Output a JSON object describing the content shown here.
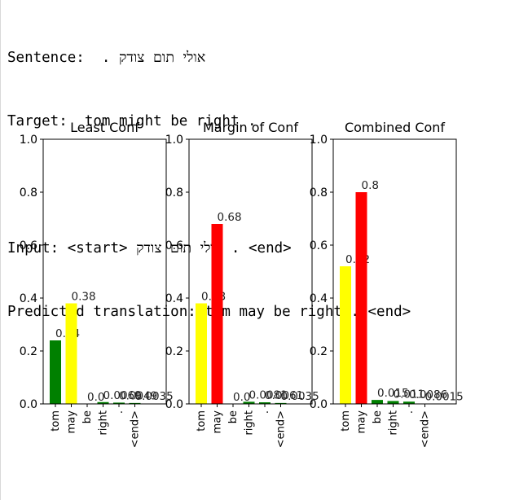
{
  "output": {
    "sentence_label": "Sentence:",
    "sentence_text": "אולי תום צודק .",
    "target_label": "Target:",
    "target_text": "tom might be right .",
    "input_label": "Input:",
    "input_text": "<start> אולי תום צודק . <end>",
    "prediction_label": "Predicted translation:",
    "prediction_text": "tom may be right . <end>"
  },
  "colors": {
    "low": "#008000",
    "mid": "#ffff00",
    "high": "#ff0000"
  },
  "chart_data": [
    {
      "type": "bar",
      "title": "Least Conf",
      "categories": [
        "tom",
        "may",
        "be",
        "right",
        ".",
        "<end>"
      ],
      "values": [
        0.24,
        0.38,
        0.0,
        0.0069,
        0.0049,
        0.0035
      ],
      "value_labels": [
        "0.24",
        "0.38",
        "0.0",
        "0.0069",
        "0.0049",
        "0.0035"
      ],
      "bar_colors": [
        "#008000",
        "#ffff00",
        "#008000",
        "#008000",
        "#008000",
        "#008000"
      ],
      "ylim": [
        0,
        1.0
      ],
      "yticks": [
        "0.0",
        "0.2",
        "0.4",
        "0.6",
        "0.8",
        "1.0"
      ]
    },
    {
      "type": "bar",
      "title": "Margin of Conf",
      "categories": [
        "tom",
        "may",
        "be",
        "right",
        ".",
        "<end>"
      ],
      "values": [
        0.38,
        0.68,
        0.0,
        0.0081,
        0.0061,
        0.0035
      ],
      "value_labels": [
        "0.38",
        "0.68",
        "0.0",
        "0.0081",
        "0.0061",
        "0.0035"
      ],
      "bar_colors": [
        "#ffff00",
        "#ff0000",
        "#008000",
        "#008000",
        "#008000",
        "#008000"
      ],
      "ylim": [
        0,
        1.0
      ],
      "yticks": [
        "0.0",
        "0.2",
        "0.4",
        "0.6",
        "0.8",
        "1.0"
      ]
    },
    {
      "type": "bar",
      "title": "Combined Conf",
      "categories": [
        "tom",
        "may",
        "be",
        "right",
        ".",
        "<end>"
      ],
      "values": [
        0.52,
        0.8,
        0.015,
        0.011,
        0.0086,
        0.0015
      ],
      "value_labels": [
        "0.52",
        "0.8",
        "0.015",
        "0.011",
        "0.0086",
        "0.0015"
      ],
      "bar_colors": [
        "#ffff00",
        "#ff0000",
        "#008000",
        "#008000",
        "#008000",
        "#008000"
      ],
      "ylim": [
        0,
        1.0
      ],
      "yticks": [
        "0.0",
        "0.2",
        "0.4",
        "0.6",
        "0.8",
        "1.0"
      ]
    }
  ]
}
